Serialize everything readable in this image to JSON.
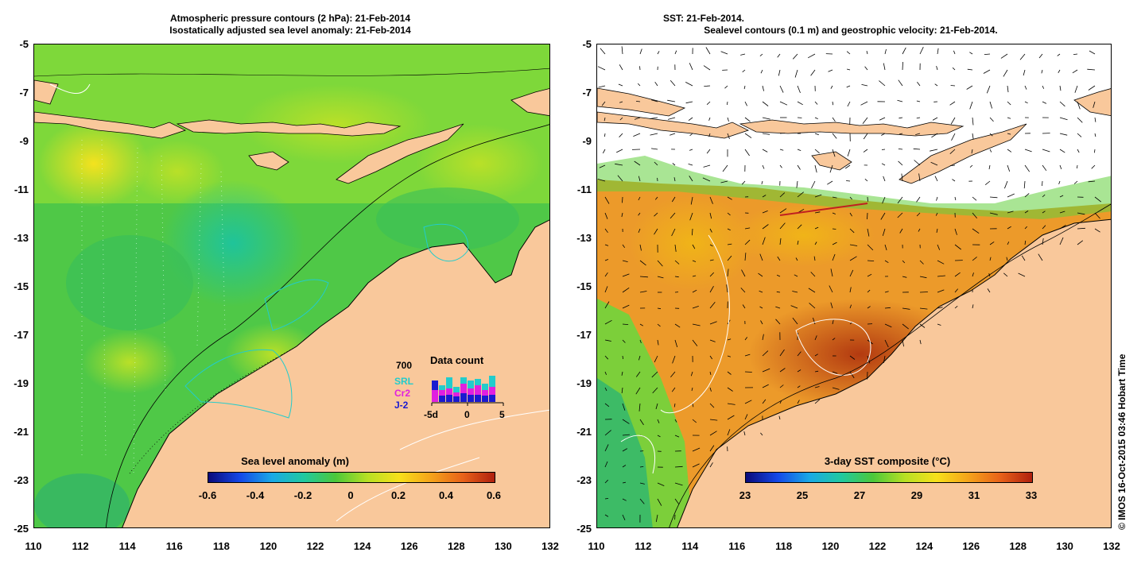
{
  "left_panel": {
    "title_line1": "Atmospheric pressure contours (2 hPa): 21-Feb-2014",
    "title_line2": "Isostatically adjusted sea level anomaly: 21-Feb-2014",
    "colorbar_title": "Sea level anomaly (m)",
    "colorbar_ticks": [
      "-0.6",
      "-0.4",
      "-0.2",
      "0",
      "0.2",
      "0.4",
      "0.6"
    ],
    "data_count": {
      "title": "Data count",
      "max_label": "700",
      "legend": [
        "SRL",
        "Cr2",
        "J-2"
      ],
      "x_ticks": [
        "-5d",
        "0",
        "5"
      ]
    }
  },
  "right_panel": {
    "title_line1": "SST: 21-Feb-2014.",
    "title_line2": "Sealevel contours (0.1 m) and geostrophic velocity: 21-Feb-2014.",
    "colorbar_title": "3-day SST composite (°C)",
    "colorbar_ticks": [
      "23",
      "25",
      "27",
      "29",
      "31",
      "33"
    ]
  },
  "axes": {
    "lat_ticks": [
      "-5",
      "-7",
      "-9",
      "-11",
      "-13",
      "-15",
      "-17",
      "-19",
      "-21",
      "-23",
      "-25"
    ],
    "lon_ticks": [
      "110",
      "112",
      "114",
      "116",
      "118",
      "120",
      "122",
      "124",
      "126",
      "128",
      "130",
      "132"
    ]
  },
  "credit": "© IMOS 16-Oct-2015 03:46 Hobart Time",
  "colors": {
    "land": "#f9c89b",
    "ocean_base": "#5fd33a",
    "srl": "#22cccc",
    "cr2": "#e020e0",
    "j2": "#1a1ad0"
  }
}
